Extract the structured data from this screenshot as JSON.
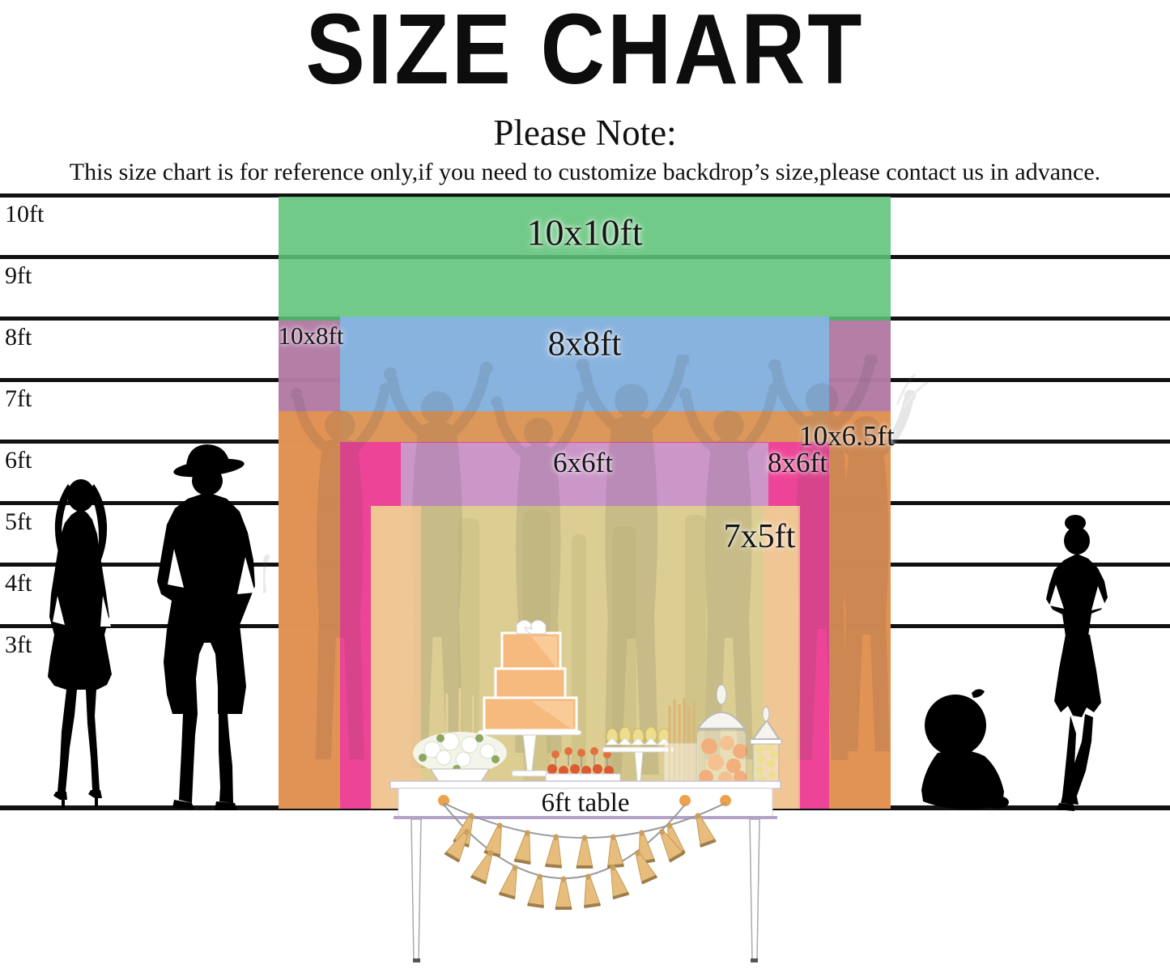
{
  "title": "SIZE CHART",
  "note": {
    "heading": "Please Note:",
    "body": "This size chart is for reference only,if you need to customize backdrop’s size,please contact us in advance."
  },
  "ruler": {
    "labels": [
      "10ft",
      "9ft",
      "8ft",
      "7ft",
      "6ft",
      "5ft",
      "4ft",
      "3ft"
    ]
  },
  "sizes": [
    {
      "label": "10x10ft",
      "width_ft": 10,
      "height_ft": 10,
      "color": "#5fc377"
    },
    {
      "label": "10x8ft",
      "width_ft": 10,
      "height_ft": 8,
      "color": "#c36dae"
    },
    {
      "label": "8x8ft",
      "width_ft": 8,
      "height_ft": 8,
      "color": "#85b7e3"
    },
    {
      "label": "10x6.5ft",
      "width_ft": 10,
      "height_ft": 6.5,
      "color": "#e6954d"
    },
    {
      "label": "8x6ft",
      "width_ft": 8,
      "height_ft": 6,
      "color": "#ee3f9b"
    },
    {
      "label": "6x6ft",
      "width_ft": 6,
      "height_ft": 6,
      "color": "#c3a6d2"
    },
    {
      "label": "7x5ft",
      "width_ft": 7,
      "height_ft": 5,
      "color": "#dcd18f"
    }
  ],
  "table": {
    "label": "6ft table"
  },
  "palette": {
    "ruler_line": "#111111",
    "silhouette": "#000000",
    "tassel_gold": "#e7bd7d",
    "backdrop_khaki": "#dcd18f",
    "cake_peach": "#f6b97e"
  }
}
